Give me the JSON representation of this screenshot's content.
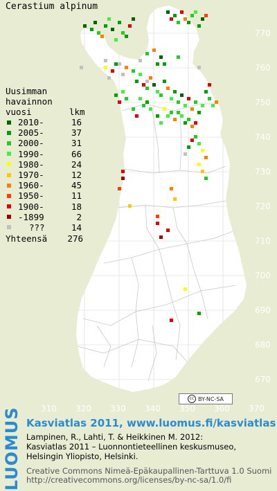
{
  "title": "Cerastium alpinum",
  "legend": {
    "header": [
      "Uusimman",
      "havainnon",
      "vuosi"
    ],
    "count_header": "lkm",
    "rows": [
      {
        "label": "2010-",
        "count": "16",
        "color": "#006400"
      },
      {
        "label": "2005-",
        "count": "37",
        "color": "#00a000"
      },
      {
        "label": "2000-",
        "count": "31",
        "color": "#22cc22"
      },
      {
        "label": "1990-",
        "count": "66",
        "color": "#44ee44"
      },
      {
        "label": "1980-",
        "count": "24",
        "color": "#ffff00"
      },
      {
        "label": "1970-",
        "count": "12",
        "color": "#ffc800"
      },
      {
        "label": "1960-",
        "count": "45",
        "color": "#ff8000"
      },
      {
        "label": "1950-",
        "count": "11",
        "color": "#ff4000"
      },
      {
        "label": "1900-",
        "count": "18",
        "color": "#e00000"
      },
      {
        "label": "-1899",
        "count": "2",
        "color": "#a00000"
      },
      {
        "label": "???",
        "count": "14",
        "color": "#c0c0c0"
      }
    ],
    "total_label": "Yhteensä",
    "total": "276"
  },
  "grid": {
    "y_ticks": [
      "770",
      "760",
      "750",
      "740",
      "730",
      "720",
      "710",
      "700",
      "690",
      "680",
      "670"
    ],
    "x_ticks": [
      "310",
      "320",
      "330",
      "340",
      "350",
      "360",
      "370"
    ]
  },
  "license_badge": "BY-NC-SA",
  "brand": "LUOMUS",
  "credits": {
    "line1": "Kasviatlas 2011, www.luomus.fi/kasviatlas",
    "line2": "Lampinen, R., Lahti, T. & Heikkinen M. 2012:",
    "line3": "Kasviatlas 2011 – Luonnontieteellinen keskusmuseo,",
    "line4": "Helsingin Yliopisto, Helsinki.",
    "line5": "Creative Commons Nimeä-Epäkaupallinen-Tarttuva 1.0 Suomi",
    "line6": "http://creativecommons.org/licenses/by-nc-sa/1.0/fi"
  },
  "colors": {
    "background": "#e8ecd2",
    "land": "#ffffff",
    "grid": "#e0e0e0",
    "border": "#c8c8c8",
    "brand": "#2b8bd0"
  },
  "observations": [
    [
      12,
      5,
      0
    ],
    [
      14,
      6,
      1
    ],
    [
      15,
      4,
      0
    ],
    [
      16,
      7,
      2
    ],
    [
      18,
      5,
      1
    ],
    [
      19,
      3,
      3
    ],
    [
      17,
      8,
      6
    ],
    [
      20,
      6,
      0
    ],
    [
      22,
      4,
      1
    ],
    [
      23,
      7,
      2
    ],
    [
      21,
      9,
      3
    ],
    [
      25,
      5,
      8
    ],
    [
      26,
      3,
      0
    ],
    [
      24,
      8,
      1
    ],
    [
      36,
      1,
      0
    ],
    [
      38,
      2,
      1
    ],
    [
      40,
      1,
      8
    ],
    [
      41,
      3,
      6
    ],
    [
      43,
      2,
      2
    ],
    [
      42,
      4,
      1
    ],
    [
      44,
      1,
      3
    ],
    [
      46,
      3,
      0
    ],
    [
      47,
      2,
      7
    ],
    [
      45,
      5,
      1
    ],
    [
      39,
      4,
      2
    ],
    [
      37,
      3,
      8
    ],
    [
      30,
      13,
      2
    ],
    [
      32,
      12,
      6
    ],
    [
      34,
      14,
      0
    ],
    [
      33,
      16,
      1
    ],
    [
      18,
      17,
      4
    ],
    [
      20,
      18,
      8
    ],
    [
      21,
      16,
      1
    ],
    [
      23,
      19,
      10
    ],
    [
      24,
      17,
      6
    ],
    [
      19,
      20,
      10
    ],
    [
      26,
      18,
      2
    ],
    [
      28,
      19,
      3
    ],
    [
      27,
      21,
      1
    ],
    [
      29,
      22,
      8
    ],
    [
      31,
      20,
      6
    ],
    [
      30,
      23,
      2
    ],
    [
      32,
      22,
      0
    ],
    [
      33,
      24,
      3
    ],
    [
      35,
      21,
      1
    ],
    [
      34,
      25,
      2
    ],
    [
      36,
      23,
      6
    ],
    [
      37,
      26,
      3
    ],
    [
      38,
      24,
      1
    ],
    [
      39,
      27,
      2
    ],
    [
      40,
      25,
      0
    ],
    [
      41,
      28,
      3
    ],
    [
      42,
      26,
      8
    ],
    [
      43,
      29,
      6
    ],
    [
      44,
      27,
      2
    ],
    [
      45,
      30,
      1
    ],
    [
      46,
      28,
      3
    ],
    [
      28,
      26,
      3
    ],
    [
      29,
      28,
      2
    ],
    [
      30,
      27,
      1
    ],
    [
      31,
      29,
      3
    ],
    [
      26,
      29,
      2
    ],
    [
      27,
      31,
      8
    ],
    [
      35,
      29,
      4
    ],
    [
      36,
      31,
      3
    ],
    [
      37,
      30,
      2
    ],
    [
      38,
      32,
      6
    ],
    [
      33,
      31,
      1
    ],
    [
      34,
      33,
      3
    ],
    [
      39,
      30,
      2
    ],
    [
      40,
      31,
      3
    ],
    [
      41,
      33,
      1
    ],
    [
      42,
      32,
      2
    ],
    [
      43,
      34,
      6
    ],
    [
      44,
      33,
      8
    ],
    [
      47,
      24,
      1
    ],
    [
      48,
      26,
      2
    ],
    [
      49,
      28,
      3
    ],
    [
      50,
      27,
      6
    ],
    [
      23,
      24,
      3
    ],
    [
      24,
      26,
      2
    ],
    [
      22,
      27,
      8
    ],
    [
      21,
      25,
      1
    ],
    [
      44,
      37,
      2
    ],
    [
      45,
      39,
      3
    ],
    [
      46,
      41,
      4
    ],
    [
      47,
      43,
      6
    ],
    [
      45,
      45,
      4
    ],
    [
      46,
      47,
      5
    ],
    [
      47,
      49,
      2
    ],
    [
      43,
      38,
      8
    ],
    [
      42,
      40,
      1
    ],
    [
      37,
      52,
      6
    ],
    [
      38,
      55,
      5
    ],
    [
      33,
      60,
      7
    ],
    [
      33,
      62,
      8
    ],
    [
      34,
      66,
      9
    ],
    [
      36,
      64,
      8
    ],
    [
      23,
      47,
      8
    ],
    [
      23,
      49,
      9
    ],
    [
      22,
      52,
      7
    ],
    [
      25,
      57,
      5
    ],
    [
      41,
      81,
      4
    ],
    [
      45,
      88,
      1
    ],
    [
      37,
      90,
      8
    ],
    [
      11,
      17,
      10
    ],
    [
      18,
      15,
      10
    ],
    [
      22,
      16,
      10
    ],
    [
      28,
      15,
      10
    ],
    [
      45,
      17,
      10
    ],
    [
      41,
      42,
      10
    ],
    [
      30,
      21,
      10
    ],
    [
      35,
      16,
      1
    ],
    [
      39,
      14,
      2
    ],
    [
      48,
      22,
      8
    ]
  ]
}
